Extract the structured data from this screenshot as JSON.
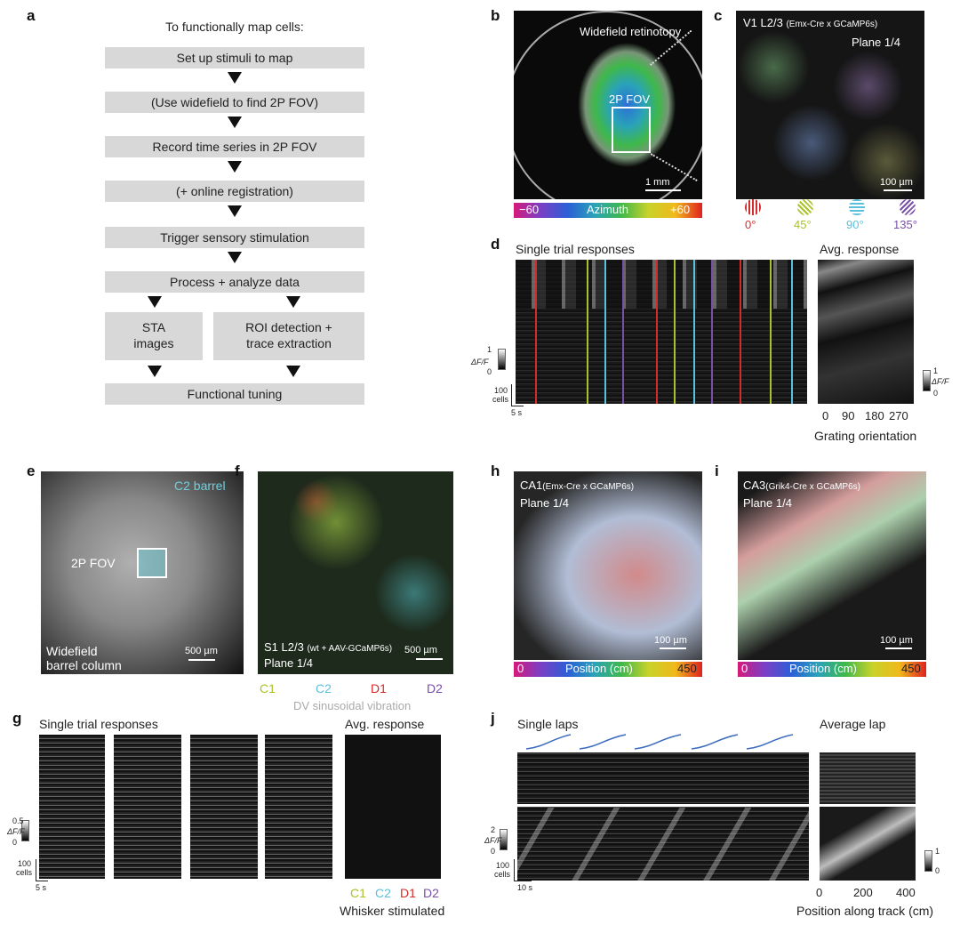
{
  "panels": {
    "a": "a",
    "b": "b",
    "c": "c",
    "d": "d",
    "e": "e",
    "f": "f",
    "g": "g",
    "h": "h",
    "i": "i",
    "j": "j"
  },
  "flow": {
    "title": "To functionally map cells:",
    "steps": [
      "Set up stimuli to map",
      "(Use widefield to find 2P FOV)",
      "Record time series in 2P FOV",
      "(+ online registration)",
      "Trigger sensory stimulation",
      "Process + analyze data"
    ],
    "left_branch": [
      "STA",
      "images"
    ],
    "right_branch": [
      "ROI detection +",
      "trace extraction"
    ],
    "final": "Functional tuning"
  },
  "b": {
    "title": "Widefield retinotopy",
    "fov": "2P FOV",
    "scale": "1 mm",
    "bar_min": "−60",
    "bar_label": "Azimuth",
    "bar_max": "+60"
  },
  "c": {
    "title": "V1 L2/3",
    "title_small": "(Emx-Cre x GCaMP6s)",
    "plane": "Plane 1/4",
    "scale": "100 µm",
    "orients": [
      "0°",
      "45°",
      "90°",
      "135°"
    ],
    "orient_colors": [
      "#d42b2b",
      "#a8c22a",
      "#5bc0de",
      "#7a4fa8"
    ]
  },
  "d": {
    "left_title": "Single trial responses",
    "right_title": "Avg. response",
    "dff_top": "1",
    "dff_label": "ΔF/F",
    "dff_bottom": "0",
    "cells": "100",
    "cells_unit": "cells",
    "time": "5 s",
    "cb_top": "1",
    "cb_label": "ΔF/F",
    "cb_bottom": "0",
    "xticks": [
      "0",
      "90",
      "180",
      "270"
    ],
    "xlabel": "Grating orientation"
  },
  "e": {
    "title": "C2 barrel",
    "fov": "2P FOV",
    "bottom1": "Widefield",
    "bottom2": "barrel column",
    "scale": "500 µm"
  },
  "f": {
    "title": "S1 L2/3",
    "title_small": "(wt + AAV-GCaMP6s)",
    "plane": "Plane 1/4",
    "scale": "500 µm",
    "whiskers": [
      "C1",
      "C2",
      "D1",
      "D2"
    ],
    "whisker_colors": [
      "#a8c22a",
      "#5bc0de",
      "#d42b2b",
      "#7a4fa8"
    ],
    "caption": "DV sinusoidal vibration"
  },
  "g": {
    "left_title": "Single trial responses",
    "right_title": "Avg. response",
    "dff_top": "0.5",
    "dff_label": "ΔF/F",
    "dff_bottom": "0",
    "cells": "100",
    "cells_unit": "cells",
    "time": "5 s",
    "xticks": [
      "C1",
      "C2",
      "D1",
      "D2"
    ],
    "xlabel": "Whisker stimulated"
  },
  "h": {
    "title": "CA1",
    "title_small": "(Emx-Cre x GCaMP6s)",
    "plane": "Plane 1/4",
    "scale": "100 µm",
    "bar_min": "0",
    "bar_label": "Position (cm)",
    "bar_max": "450"
  },
  "i": {
    "title": "CA3",
    "title_small": "(Grik4-Cre x GCaMP6s)",
    "plane": "Plane 1/4",
    "scale": "100 µm",
    "bar_min": "0",
    "bar_label": "Position (cm)",
    "bar_max": "450"
  },
  "j": {
    "left_title": "Single laps",
    "right_title": "Average lap",
    "dff_top": "2",
    "dff_label": "ΔF/F",
    "dff_bottom": "0",
    "cells": "100",
    "cells_unit": "cells",
    "time": "10 s",
    "cb_top": "1",
    "cb_bottom": "0",
    "xticks": [
      "0",
      "200",
      "400"
    ],
    "xlabel": "Position along track (cm)"
  }
}
